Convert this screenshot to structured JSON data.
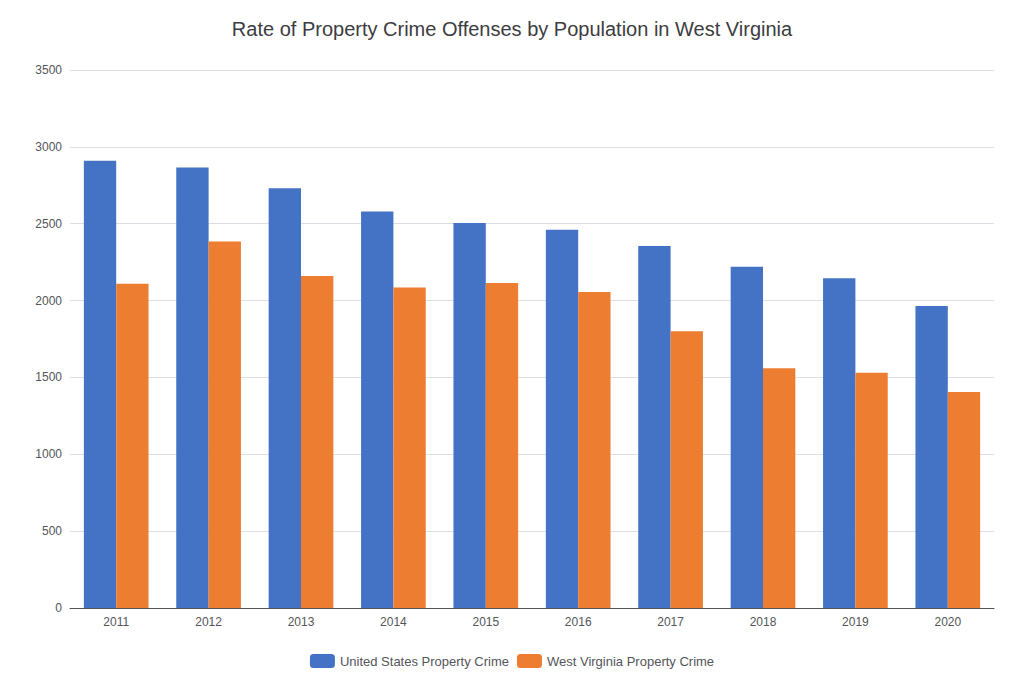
{
  "chart_data": {
    "type": "bar",
    "title": "Rate of Property Crime Offenses by Population in West Virginia",
    "categories": [
      "2011",
      "2012",
      "2013",
      "2014",
      "2015",
      "2016",
      "2017",
      "2018",
      "2019",
      "2020"
    ],
    "series": [
      {
        "name": "United States Property Crime",
        "color": "#4472C4",
        "values": [
          2910,
          2865,
          2730,
          2580,
          2505,
          2460,
          2355,
          2220,
          2145,
          1965
        ]
      },
      {
        "name": "West Virginia Property Crime",
        "color": "#ED7D31",
        "values": [
          2110,
          2385,
          2160,
          2085,
          2115,
          2055,
          1800,
          1560,
          1530,
          1405
        ]
      }
    ],
    "ylim": [
      0,
      3500
    ],
    "yticks": [
      0,
      500,
      1000,
      1500,
      2000,
      2500,
      3000,
      3500
    ],
    "grid": true,
    "legend": "bottom"
  }
}
